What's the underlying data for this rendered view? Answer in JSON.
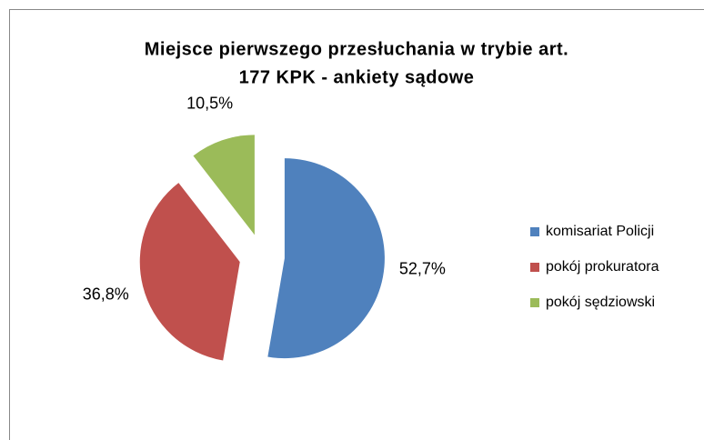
{
  "chart_data": {
    "type": "pie",
    "title": [
      "Miejsce pierwszego przesłuchania w trybie art.",
      "177 KPK - ankiety sądowe"
    ],
    "categories": [
      "komisariat Policji",
      "pokój prokuratora",
      "pokój sędziowski"
    ],
    "values": [
      52.7,
      36.8,
      10.5
    ],
    "value_labels": [
      "52,7%",
      "36,8%",
      "10,5%"
    ],
    "colors": [
      "#4f81bd",
      "#c0504d",
      "#9bbb59"
    ],
    "exploded": true,
    "legend": "right"
  }
}
